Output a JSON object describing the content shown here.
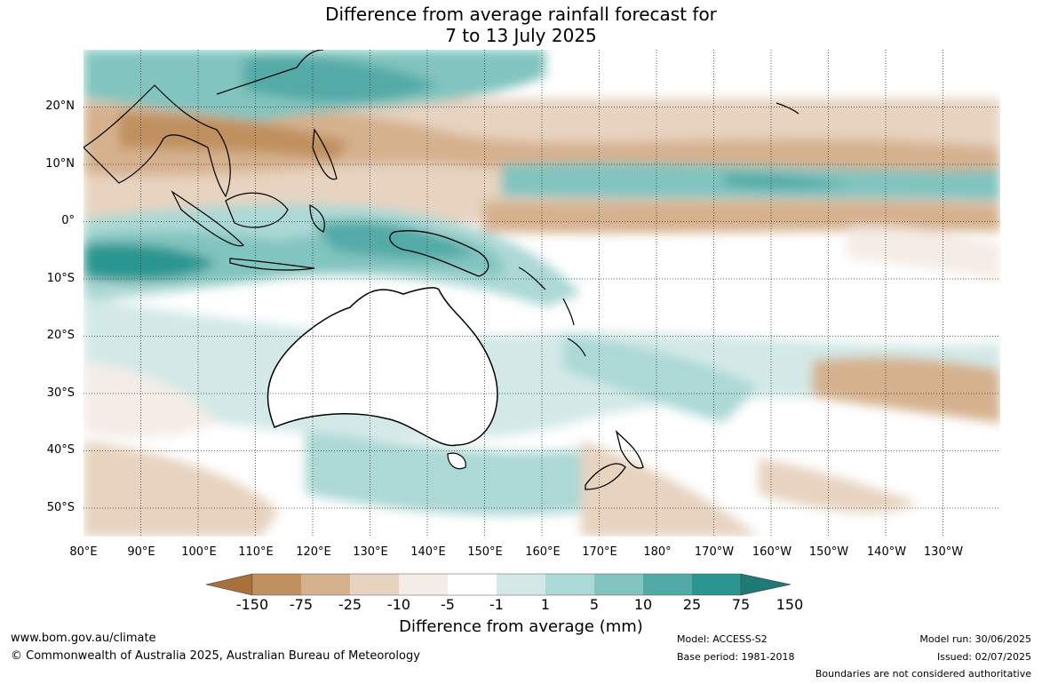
{
  "title_line1": "Difference from average rainfall forecast for",
  "title_line2": "7 to 13 July 2025",
  "lat_labels": [
    "20°N",
    "10°N",
    "0°",
    "10°S",
    "20°S",
    "30°S",
    "40°S",
    "50°S"
  ],
  "lon_labels": [
    "80°E",
    "90°E",
    "100°E",
    "110°E",
    "120°E",
    "130°E",
    "140°E",
    "150°E",
    "160°E",
    "170°E",
    "180°",
    "170°W",
    "160°W",
    "150°W",
    "140°W",
    "130°W"
  ],
  "legend": {
    "ticks": [
      "-150",
      "-75",
      "-25",
      "-10",
      "-5",
      "-1",
      "1",
      "5",
      "10",
      "25",
      "75",
      "150"
    ],
    "colors": [
      "#a8703a",
      "#c0905f",
      "#d5b18e",
      "#e7d3c0",
      "#f4ece6",
      "#ffffff",
      "#d3e9e7",
      "#acd8d5",
      "#82c4bf",
      "#52aaa7",
      "#2a9691",
      "#1f7a76"
    ],
    "label": "Difference from average (mm)"
  },
  "footer": {
    "url": "www.bom.gov.au/climate",
    "copyright": "© Commonwealth of Australia 2025, Australian Bureau of Meteorology",
    "model": "Model: ACCESS-S2",
    "base_period": "Base period: 1981-2018",
    "model_run": "Model run: 30/06/2025",
    "issued": "Issued: 02/07/2025",
    "disclaimer": "Boundaries are not considered authoritative"
  }
}
